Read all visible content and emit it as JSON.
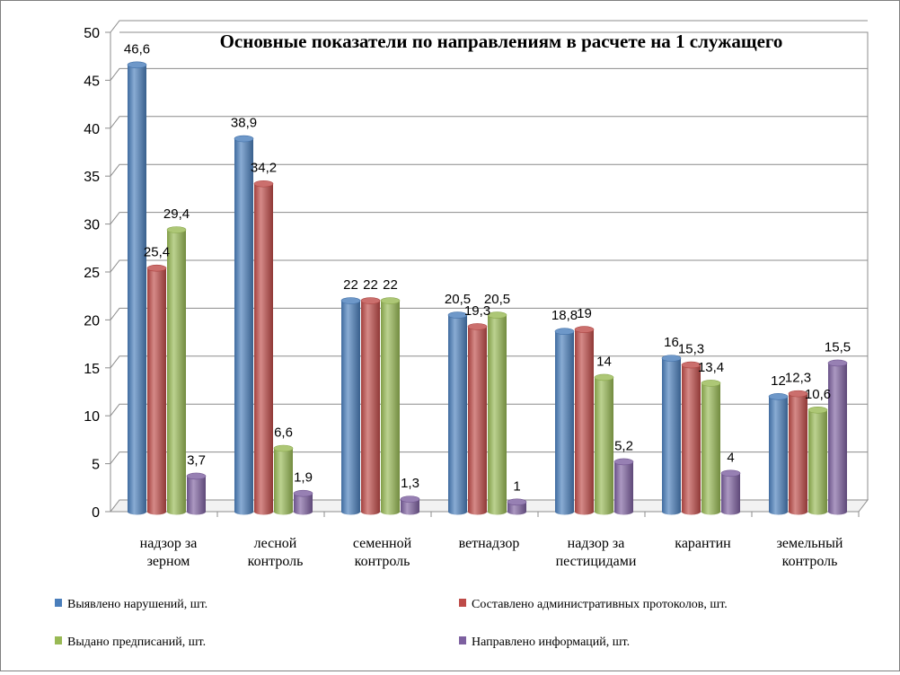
{
  "chart_data": {
    "type": "bar",
    "title": "Основные показатели по направлениям в расчете на 1 служащего",
    "xlabel": "",
    "ylabel": "",
    "ylim": [
      0,
      50
    ],
    "yticks": [
      0,
      5,
      10,
      15,
      20,
      25,
      30,
      35,
      40,
      45,
      50
    ],
    "grid": true,
    "legend": "bottom",
    "categories": [
      [
        "надзор за",
        "зерном"
      ],
      [
        "лесной",
        "контроль"
      ],
      [
        "семенной",
        "контроль"
      ],
      [
        "ветнадзор"
      ],
      [
        "надзор за",
        "пестицидами"
      ],
      [
        "карантин"
      ],
      [
        "земельный",
        "контроль"
      ]
    ],
    "series": [
      {
        "name": "Выявлено нарушений, шт.",
        "color": "#4a7ebb",
        "values": [
          46.6,
          38.9,
          22,
          20.5,
          18.8,
          16,
          12
        ],
        "labels": [
          "46,6",
          "38,9",
          "22",
          "20,5",
          "18,8",
          "16",
          "12"
        ]
      },
      {
        "name": "Составлено административных протоколов, шт.",
        "color": "#be4b48",
        "values": [
          25.4,
          34.2,
          22,
          19.3,
          19,
          15.3,
          12.3
        ],
        "labels": [
          "25,4",
          "34,2",
          "22",
          "19,3",
          "19",
          "15,3",
          "12,3"
        ]
      },
      {
        "name": "Выдано предписаний, шт.",
        "color": "#98b954",
        "values": [
          29.4,
          6.6,
          22,
          20.5,
          14,
          13.4,
          10.6
        ],
        "labels": [
          "29,4",
          "6,6",
          "22",
          "20,5",
          "14",
          "13,4",
          "10,6"
        ]
      },
      {
        "name": "Направлено информаций, шт.",
        "color": "#7d60a0",
        "values": [
          3.7,
          1.9,
          1.3,
          1,
          5.2,
          4,
          15.5
        ],
        "labels": [
          "3,7",
          "1,9",
          "1,3",
          "1",
          "5,2",
          "4",
          "15,5"
        ]
      }
    ]
  }
}
